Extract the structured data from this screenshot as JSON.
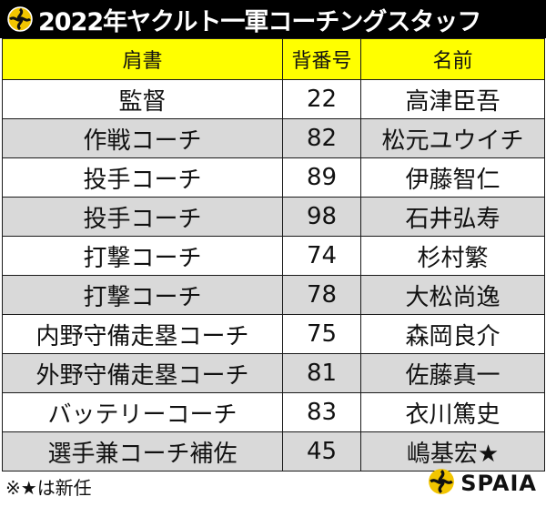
{
  "title": "2022年ヤクルト一軍コーチングスタッフ",
  "columns": [
    "肩書",
    "背番号",
    "名前"
  ],
  "rows": [
    {
      "role": "監督",
      "number": "22",
      "name": "高津臣吾"
    },
    {
      "role": "作戦コーチ",
      "number": "82",
      "name": "松元ユウイチ"
    },
    {
      "role": "投手コーチ",
      "number": "89",
      "name": "伊藤智仁"
    },
    {
      "role": "投手コーチ",
      "number": "98",
      "name": "石井弘寿"
    },
    {
      "role": "打撃コーチ",
      "number": "74",
      "name": "杉村繁"
    },
    {
      "role": "打撃コーチ",
      "number": "78",
      "name": "大松尚逸"
    },
    {
      "role": "内野守備走塁コーチ",
      "number": "75",
      "name": "森岡良介"
    },
    {
      "role": "外野守備走塁コーチ",
      "number": "81",
      "name": "佐藤真一"
    },
    {
      "role": "バッテリーコーチ",
      "number": "83",
      "name": "衣川篤史"
    },
    {
      "role": "選手兼コーチ補佐",
      "number": "45",
      "name": "嶋基宏★"
    }
  ],
  "footnote": "※★は新任",
  "brand": "SPAIA",
  "icons": {
    "title_logo": "spaia-logo-icon",
    "brand_logo": "spaia-logo-icon"
  },
  "colors": {
    "header_bg": "#ffff00",
    "title_bg": "#000000",
    "alt_row_bg": "#d9d9d9",
    "logo_yellow": "#f2c500"
  }
}
